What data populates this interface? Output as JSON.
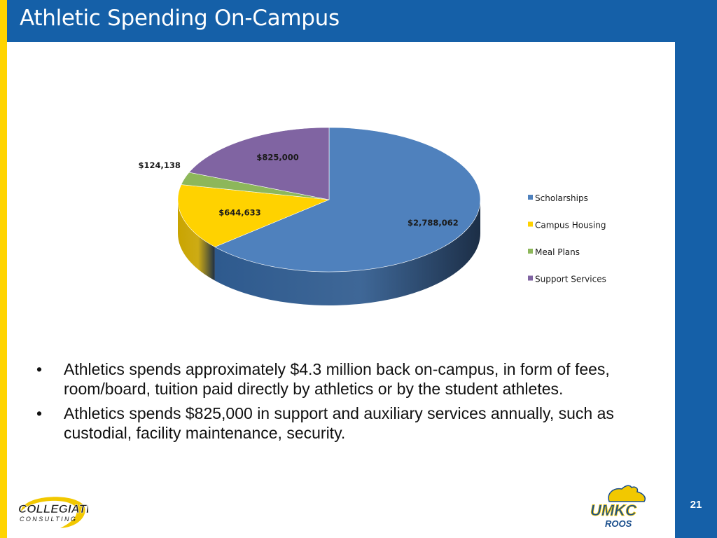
{
  "slide": {
    "title": "Athletic Spending On-Campus",
    "page_number": "21",
    "bullets": [
      "Athletics spends approximately $4.3 million back on-campus, in form of fees, room/board, tuition paid directly by athletics or by the student athletes.",
      "Athletics spends $825,000 in support and auxiliary services annually, such as custodial, facility maintenance, security."
    ],
    "bullet_symbol": "•",
    "logos": {
      "left": {
        "line1": "COLLEGIATE",
        "line2": "CONSULTING"
      },
      "right": {
        "line1": "UMKC",
        "line2": "ROOS"
      }
    },
    "colors": {
      "header": "#1560A8",
      "accent_bar": "#FFD400"
    }
  },
  "chart_data": {
    "type": "pie",
    "style": "3d",
    "categories": [
      "Scholarships",
      "Campus Housing",
      "Meal Plans",
      "Support Services"
    ],
    "values": [
      2788062,
      644633,
      124138,
      825000
    ],
    "labels": [
      "$2,788,062",
      "$644,633",
      "$124,138",
      "$825,000"
    ],
    "colors": [
      "#4F81BD",
      "#FFD200",
      "#8DB75A",
      "#8064A2"
    ],
    "side_colors": [
      "#2E5A8E",
      "#C9A400",
      "#5F8A36",
      "#5A4478"
    ],
    "legend_position": "right",
    "legend": [
      "Scholarships",
      "Campus Housing",
      "Meal Plans",
      "Support Services"
    ]
  }
}
